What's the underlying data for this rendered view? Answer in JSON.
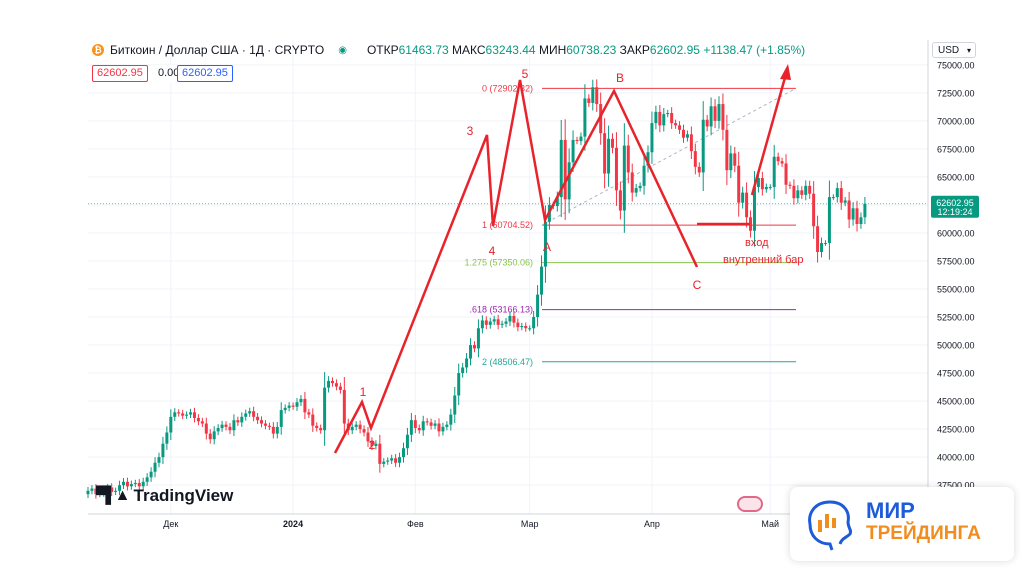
{
  "header": {
    "symbol": "Биткоин / Доллар США · 1Д · CRYPTO",
    "btc_icon": "bitcoin-icon",
    "open_label": "ОТКР",
    "open": "61463.73",
    "high_label": "МАКС",
    "high": "63243.44",
    "low_label": "МИН",
    "low": "60738.23",
    "close_label": "ЗАКР",
    "close": "62602.95",
    "change": "+1138.47 (+1.85%)",
    "bid": "62602.95",
    "spread": "0.00",
    "ask": "62602.95"
  },
  "currency": "USD",
  "price_label": {
    "price": "62602.95",
    "timer": "12:19:24"
  },
  "tradingview": "TradingView",
  "brand": {
    "line1": "МИР",
    "line2": "ТРЕЙДИНГА"
  },
  "colors": {
    "up": "#089981",
    "down": "#f23645",
    "annotation": "#e8232b"
  },
  "chart_data": {
    "type": "candlestick",
    "y_axis": {
      "min": 36000,
      "max": 76500,
      "ticks": [
        37500,
        40000,
        42500,
        45000,
        47500,
        50000,
        52500,
        55000,
        57500,
        60000,
        62500,
        65000,
        67500,
        70000,
        72500,
        75000
      ]
    },
    "x_labels": [
      {
        "date": "2023-12-01",
        "label": "Дек"
      },
      {
        "date": "2024-01-01",
        "label": "2024"
      },
      {
        "date": "2024-02-01",
        "label": "Фев"
      },
      {
        "date": "2024-03-01",
        "label": "Мар"
      },
      {
        "date": "2024-04-01",
        "label": "Апр"
      },
      {
        "date": "2024-05-01",
        "label": "Май"
      }
    ],
    "date_range": [
      "2023-11-10",
      "2024-06-10"
    ],
    "candles_start": "2023-11-10",
    "closes": [
      37000,
      37200,
      36700,
      36800,
      37100,
      37300,
      36900,
      37000,
      37500,
      37800,
      37400,
      37600,
      37700,
      37400,
      37800,
      38200,
      38700,
      39500,
      40000,
      41200,
      42200,
      43600,
      44000,
      43900,
      43700,
      43800,
      44000,
      43500,
      43200,
      43000,
      42100,
      41600,
      42300,
      42600,
      42900,
      42700,
      42400,
      43300,
      43100,
      43600,
      43900,
      44100,
      43600,
      43300,
      43000,
      42800,
      42700,
      42100,
      42700,
      44200,
      44400,
      44600,
      44500,
      44900,
      45200,
      44000,
      43800,
      42800,
      42600,
      42400,
      46200,
      46800,
      46600,
      46300,
      46000,
      43000,
      42400,
      42700,
      42900,
      42500,
      42200,
      41400,
      41000,
      41200,
      39400,
      39600,
      39700,
      39900,
      39500,
      40000,
      40800,
      42000,
      43300,
      42600,
      42400,
      43200,
      43100,
      42800,
      43000,
      42300,
      42700,
      42900,
      43800,
      45500,
      47500,
      48000,
      48800,
      50000,
      49700,
      51500,
      52200,
      51800,
      52100,
      52300,
      51800,
      51900,
      52100,
      52600,
      52000,
      51600,
      51700,
      51500,
      51500,
      52500,
      54500,
      57000,
      61000,
      62500,
      62400,
      63200,
      68300,
      63000,
      66300,
      68300,
      68200,
      68600,
      72000,
      71600,
      73000,
      71500,
      68900,
      65300,
      68400,
      67600,
      63800,
      62000,
      67800,
      65400,
      63600,
      64000,
      64200,
      66000,
      67200,
      69800,
      70800,
      69600,
      70600,
      70700,
      69800,
      69600,
      69200,
      68500,
      68800,
      67300,
      65900,
      65400,
      70100,
      69500,
      71300,
      70000,
      71500,
      69200,
      65600,
      67100,
      66000,
      62700,
      63600,
      61400,
      60200,
      64100,
      64900,
      63900,
      64100,
      64100,
      66800,
      66400,
      66200,
      64300,
      64200,
      63100,
      63800,
      63400,
      64200,
      63500,
      60600,
      58300,
      59100,
      59100,
      63200,
      63200,
      64000,
      62700,
      62900,
      61200,
      62200,
      60800,
      61400,
      62600
    ]
  },
  "annotations": {
    "wave_labels": [
      "1",
      "2",
      "3",
      "4",
      "5",
      "A",
      "B",
      "C"
    ],
    "note_entry": "вход",
    "note_bar": "внутренний бар",
    "fib": [
      {
        "label": "0 (72902.32)",
        "value": 72902.32,
        "color": "#f23645"
      },
      {
        "label": "1 (60704.52)",
        "value": 60704.52,
        "color": "#f23645"
      },
      {
        "label": "1.275 (57350.06)",
        "value": 57350.06,
        "color": "#8bc34a"
      },
      {
        "label": ".618 (53166.13)",
        "value": 53166.13,
        "color": "#9c27b0"
      },
      {
        "label": "2 (48506.47)",
        "value": 48506.47,
        "color": "#26a69a"
      }
    ]
  }
}
